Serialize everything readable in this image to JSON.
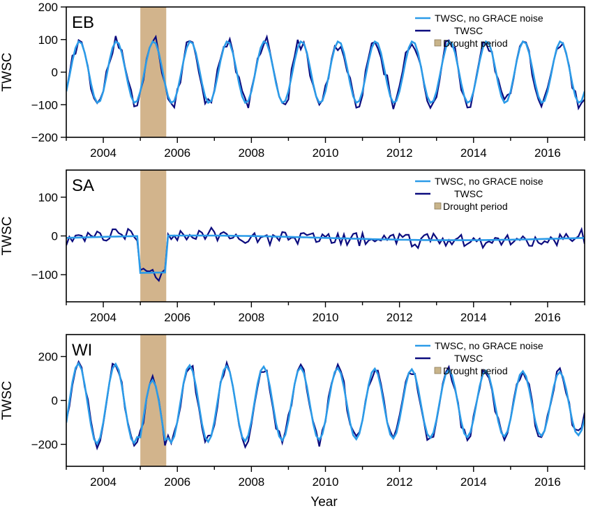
{
  "figure": {
    "xlabel": "Year",
    "legend_labels": {
      "noise_free": "TWSC, no GRACE noise",
      "twsc": "TWSC",
      "drought": "Drought period"
    },
    "colors": {
      "noise_free": "#2b9be8",
      "twsc": "#0b0b7e",
      "drought": "#d2b48c",
      "legend_swatch": "#c8b48a"
    }
  },
  "chart_data": [
    {
      "type": "line",
      "panel_label": "EB",
      "ylabel": "TWSC",
      "xlim": [
        2003.0,
        2017.0
      ],
      "ylim": [
        -200,
        200
      ],
      "x_ticks": [
        2004,
        2006,
        2008,
        2010,
        2012,
        2014,
        2016
      ],
      "x_tick_labels": [
        "2004",
        "2006",
        "2008",
        "2010",
        "2012",
        "2014",
        "2016"
      ],
      "y_ticks": [
        -200,
        -100,
        0,
        100,
        200
      ],
      "y_tick_labels": [
        "−200",
        "−100",
        "0",
        "100",
        "200"
      ],
      "drought_period": [
        2005.0,
        2005.7
      ],
      "legend_position": "top-right",
      "model": {
        "type": "seasonal",
        "amplitude": 95,
        "phase": 0.25,
        "amplitude_trend": 0.0,
        "offset": 0,
        "drought_dip": 0,
        "noise": 22,
        "seed": 11
      },
      "series": [
        {
          "name": "TWSC, no GRACE noise",
          "style": "smooth"
        },
        {
          "name": "TWSC",
          "style": "noisy"
        }
      ]
    },
    {
      "type": "line",
      "panel_label": "SA",
      "ylabel": "TWSC",
      "xlim": [
        2003.0,
        2017.0
      ],
      "ylim": [
        -170,
        170
      ],
      "x_ticks": [
        2004,
        2006,
        2008,
        2010,
        2012,
        2014,
        2016
      ],
      "x_tick_labels": [
        "2004",
        "2006",
        "2008",
        "2010",
        "2012",
        "2014",
        "2016"
      ],
      "y_ticks": [
        -100,
        0,
        100
      ],
      "y_tick_labels": [
        "−100",
        "0",
        "100"
      ],
      "drought_period": [
        2005.0,
        2005.7
      ],
      "legend_position": "top-right",
      "model": {
        "type": "flat",
        "amplitude": 0,
        "phase": 0,
        "amplitude_trend": 0,
        "offset": -5,
        "drought_dip": -95,
        "noise": 18,
        "seed": 23
      },
      "series": [
        {
          "name": "TWSC, no GRACE noise",
          "style": "smooth"
        },
        {
          "name": "TWSC",
          "style": "noisy"
        }
      ]
    },
    {
      "type": "line",
      "panel_label": "WI",
      "ylabel": "TWSC",
      "xlim": [
        2003.0,
        2017.0
      ],
      "ylim": [
        -300,
        300
      ],
      "x_ticks": [
        2004,
        2006,
        2008,
        2010,
        2012,
        2014,
        2016
      ],
      "x_tick_labels": [
        "2004",
        "2006",
        "2008",
        "2010",
        "2012",
        "2014",
        "2016"
      ],
      "y_ticks": [
        -200,
        0,
        200
      ],
      "y_tick_labels": [
        "−200",
        "0",
        "200"
      ],
      "drought_period": [
        2005.0,
        2005.7
      ],
      "legend_position": "top-right",
      "model": {
        "type": "seasonal",
        "amplitude": 185,
        "phase": 0.22,
        "amplitude_trend": -3,
        "offset": -15,
        "drought_dip": -70,
        "noise": 25,
        "seed": 37
      },
      "series": [
        {
          "name": "TWSC, no GRACE noise",
          "style": "smooth"
        },
        {
          "name": "TWSC",
          "style": "noisy"
        }
      ]
    }
  ]
}
